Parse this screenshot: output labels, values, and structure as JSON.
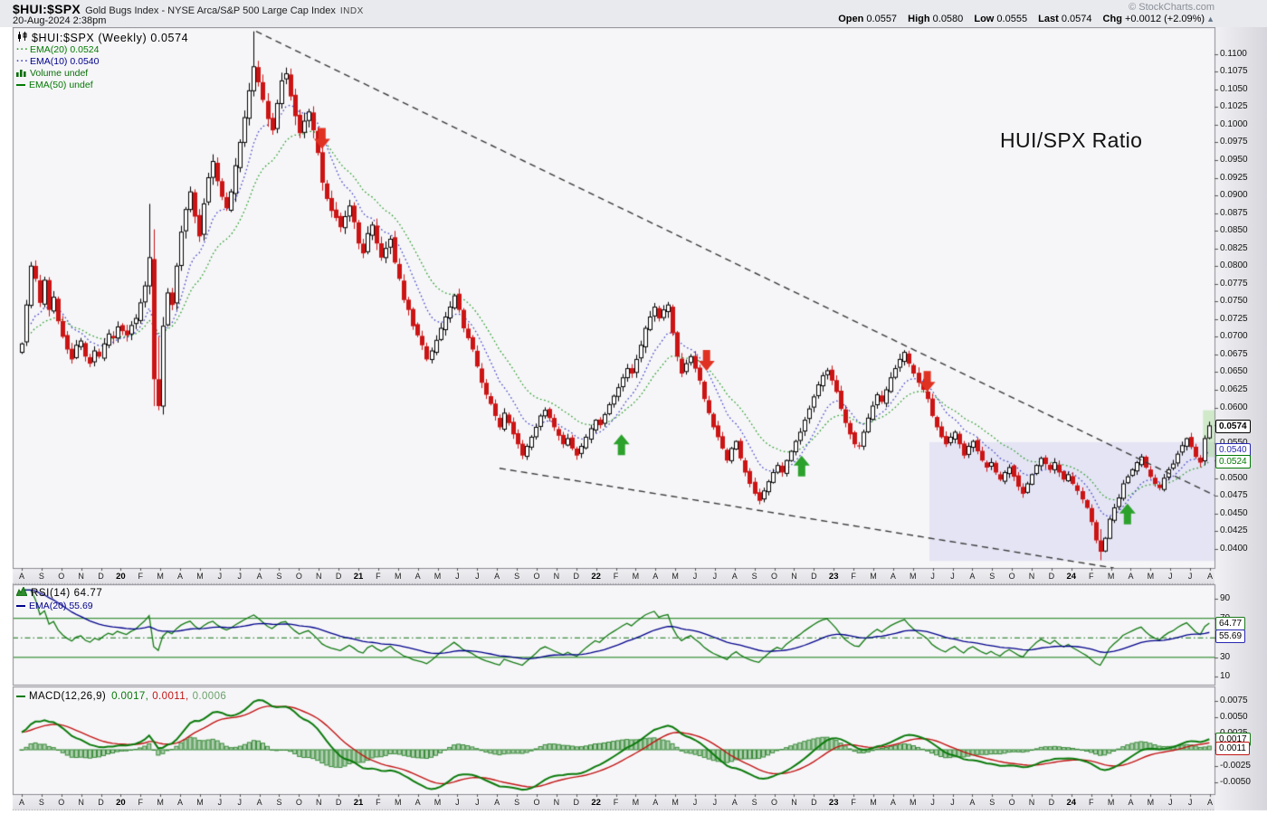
{
  "header": {
    "symbol": "$HUI:$SPX",
    "description": "Gold Bugs Index - NYSE Arca/S&P 500 Large Cap Index",
    "exchange": "INDX",
    "datetime": "20-Aug-2024 2:38pm",
    "copyright": "© StockCharts.com"
  },
  "quote": {
    "open_label": "Open",
    "open": "0.0557",
    "high_label": "High",
    "high": "0.0580",
    "low_label": "Low",
    "low": "0.0555",
    "last_label": "Last",
    "last": "0.0574",
    "chg_label": "Chg",
    "chg": "+0.0012 (+2.09%)",
    "arrow": "▲"
  },
  "main_legend": {
    "series": "$HUI:$SPX (Weekly) 0.0574",
    "ema20": "EMA(20) 0.0524",
    "ema10": "EMA(10) 0.0540",
    "volume": "Volume undef",
    "ema50": "EMA(50) undef"
  },
  "annotation": {
    "text": "HUI/SPX Ratio"
  },
  "price_labels": {
    "last": "0.0574",
    "ema10": "0.0540",
    "ema20": "0.0524"
  },
  "rsi_legend": {
    "line1": "RSI(14) 64.77",
    "line2": "EMA(20) 55.69"
  },
  "rsi_labels": {
    "rsi": "64.77",
    "ema": "55.69"
  },
  "macd_legend": {
    "name": "MACD(12,26,9)",
    "v1": "0.0017,",
    "v2": "0.0011,",
    "v3": "0.0006"
  },
  "macd_labels": {
    "macd": "0.0017",
    "signal": "0.0011"
  },
  "colors": {
    "up_candle": "#ffffff",
    "down_candle": "#cc1414",
    "candle_stroke": "#000000",
    "ema10": "#4545c8",
    "ema20": "#2e9e2e",
    "rsi_line": "#117a11",
    "rsi_ema": "#00008b",
    "rsi_bands": "#0f7a0f",
    "macd_line": "#0b7a0b",
    "macd_signal": "#c21414",
    "macd_hist_fill": "rgba(90,165,90,0.45)",
    "macd_hist_stroke": "#3a8a3a",
    "trendline": "#3a3a3a",
    "arrow_up": "#2ca12c",
    "arrow_down": "#e03222",
    "highlight_region": "rgba(110,110,215,0.13)",
    "last_candle_pad": "rgba(150,215,130,0.40)",
    "panel_bg": "#f6f6f8",
    "panel_border": "#8a8a92",
    "strip_bg": "#ececf0",
    "axis_bg": "#e2e2e8",
    "header_bg": "#e9eaee"
  },
  "y_axis_ticks": [
    "0.1100",
    "0.1075",
    "0.1050",
    "0.1025",
    "0.1000",
    "0.0975",
    "0.0950",
    "0.0925",
    "0.0900",
    "0.0875",
    "0.0850",
    "0.0825",
    "0.0800",
    "0.0775",
    "0.0750",
    "0.0725",
    "0.0700",
    "0.0675",
    "0.0650",
    "0.0625",
    "0.0600",
    "0.0575",
    "0.0550",
    "0.0525",
    "0.0500",
    "0.0475",
    "0.0450",
    "0.0425",
    "0.0400"
  ],
  "rsi_axis_ticks": [
    "90",
    "70",
    "50",
    "30",
    "10"
  ],
  "macd_axis_ticks": [
    "0.0075",
    "0.0050",
    "0.0025",
    "0.0000",
    "-0.0025",
    "-0.0050"
  ],
  "x_axis_labels": [
    "A",
    "S",
    "O",
    "N",
    "D",
    "20",
    "F",
    "M",
    "A",
    "M",
    "J",
    "J",
    "A",
    "S",
    "O",
    "N",
    "D",
    "21",
    "F",
    "M",
    "A",
    "M",
    "J",
    "J",
    "A",
    "S",
    "O",
    "N",
    "D",
    "22",
    "F",
    "M",
    "A",
    "M",
    "J",
    "J",
    "A",
    "S",
    "O",
    "N",
    "D",
    "23",
    "F",
    "M",
    "A",
    "M",
    "J",
    "J",
    "A",
    "S",
    "O",
    "N",
    "D",
    "24",
    "F",
    "M",
    "A",
    "M",
    "J",
    "J",
    "A"
  ],
  "chart_data": {
    "type": "candlestick",
    "symbol": "$HUI:$SPX",
    "timeframe": "weekly",
    "x_start": "Aug-2019",
    "x_end": "Aug-2024",
    "y_range": {
      "min": 0.0373,
      "max": 0.1138,
      "tick_min": 0.04,
      "tick_max": 0.11,
      "step": 0.0025
    },
    "last_quote": {
      "open": 0.0557,
      "high": 0.058,
      "low": 0.0555,
      "close": 0.0574,
      "change": 0.0012,
      "change_pct": 2.09
    },
    "overlays": [
      {
        "name": "EMA(10)",
        "period": 10,
        "last": 0.054
      },
      {
        "name": "EMA(20)",
        "period": 20,
        "last": 0.0524
      }
    ],
    "weekly_closes": [
      0.069,
      0.0745,
      0.08,
      0.0782,
      0.0748,
      0.078,
      0.0738,
      0.0756,
      0.0722,
      0.07,
      0.0682,
      0.0668,
      0.0688,
      0.0694,
      0.0672,
      0.0662,
      0.068,
      0.0672,
      0.069,
      0.0704,
      0.0698,
      0.0714,
      0.0708,
      0.0702,
      0.0716,
      0.0726,
      0.0748,
      0.0772,
      0.0812,
      0.064,
      0.0602,
      0.0715,
      0.0762,
      0.0745,
      0.08,
      0.0848,
      0.088,
      0.0905,
      0.087,
      0.0842,
      0.0888,
      0.0925,
      0.0948,
      0.092,
      0.0898,
      0.0882,
      0.0905,
      0.0942,
      0.0975,
      0.101,
      0.1048,
      0.1082,
      0.106,
      0.1035,
      0.1008,
      0.0992,
      0.103,
      0.1062,
      0.1072,
      0.104,
      0.1012,
      0.0988,
      0.1005,
      0.1018,
      0.0992,
      0.096,
      0.0918,
      0.0895,
      0.0878,
      0.0868,
      0.0855,
      0.087,
      0.0885,
      0.0862,
      0.0832,
      0.0818,
      0.0846,
      0.0858,
      0.0832,
      0.0812,
      0.0825,
      0.0838,
      0.0805,
      0.0782,
      0.0752,
      0.0738,
      0.0715,
      0.0702,
      0.0688,
      0.0668,
      0.068,
      0.0695,
      0.0712,
      0.0728,
      0.0742,
      0.0758,
      0.0738,
      0.0712,
      0.0698,
      0.0682,
      0.0658,
      0.0635,
      0.0618,
      0.0605,
      0.0588,
      0.0572,
      0.0592,
      0.0578,
      0.0562,
      0.0548,
      0.0532,
      0.0545,
      0.0558,
      0.0572,
      0.0588,
      0.0596,
      0.0585,
      0.0572,
      0.056,
      0.0548,
      0.0556,
      0.0542,
      0.0532,
      0.0545,
      0.0558,
      0.057,
      0.0582,
      0.0575,
      0.059,
      0.0604,
      0.0616,
      0.0628,
      0.0642,
      0.0655,
      0.0648,
      0.0668,
      0.0688,
      0.0712,
      0.0728,
      0.0742,
      0.0726,
      0.0738,
      0.0745,
      0.0705,
      0.0672,
      0.0648,
      0.0662,
      0.0672,
      0.0655,
      0.0638,
      0.0612,
      0.0592,
      0.0572,
      0.0558,
      0.0542,
      0.0525,
      0.0542,
      0.0552,
      0.0528,
      0.0508,
      0.0492,
      0.0478,
      0.0468,
      0.0482,
      0.0495,
      0.0508,
      0.0518,
      0.0508,
      0.0525,
      0.0538,
      0.0552,
      0.0565,
      0.0582,
      0.0598,
      0.0615,
      0.0632,
      0.0645,
      0.0652,
      0.0638,
      0.0622,
      0.0598,
      0.0578,
      0.0562,
      0.0548,
      0.0545,
      0.0565,
      0.0585,
      0.0602,
      0.0618,
      0.0608,
      0.0625,
      0.0642,
      0.0655,
      0.0668,
      0.0678,
      0.0662,
      0.0648,
      0.0635,
      0.0625,
      0.0612,
      0.0588,
      0.0572,
      0.0558,
      0.0548,
      0.0558,
      0.0565,
      0.0548,
      0.0532,
      0.0545,
      0.0552,
      0.0538,
      0.0525,
      0.0515,
      0.0522,
      0.0508,
      0.0498,
      0.0508,
      0.0515,
      0.0502,
      0.0488,
      0.0478,
      0.0492,
      0.0505,
      0.0518,
      0.0528,
      0.052,
      0.0512,
      0.0522,
      0.0508,
      0.0498,
      0.0505,
      0.0492,
      0.0482,
      0.047,
      0.0458,
      0.0438,
      0.0412,
      0.0396,
      0.0415,
      0.0442,
      0.0458,
      0.0472,
      0.0492,
      0.0502,
      0.0512,
      0.0522,
      0.053,
      0.0515,
      0.0502,
      0.0492,
      0.0486,
      0.05,
      0.0512,
      0.052,
      0.0534,
      0.0546,
      0.0556,
      0.0544,
      0.053,
      0.0522,
      0.0556,
      0.0574
    ],
    "ohlc_overrides": {
      "28": [
        0.0772,
        0.0888,
        0.076,
        0.0812
      ],
      "29": [
        0.081,
        0.0852,
        0.0602,
        0.064
      ],
      "30": [
        0.064,
        0.07,
        0.0596,
        0.0602
      ],
      "31": [
        0.0602,
        0.0728,
        0.059,
        0.0715
      ],
      "51": [
        0.1048,
        0.1132,
        0.104,
        0.1082
      ],
      "237": [
        0.0412,
        0.0428,
        0.0384,
        0.0396
      ],
      "261": [
        0.0557,
        0.058,
        0.0555,
        0.0574
      ]
    },
    "signal_arrows": [
      {
        "dir": "down",
        "week": 66,
        "price": 0.0966
      },
      {
        "dir": "down",
        "week": 150.5,
        "price": 0.0652
      },
      {
        "dir": "down",
        "week": 199,
        "price": 0.0622
      },
      {
        "dir": "up",
        "week": 131.8,
        "price": 0.0562
      },
      {
        "dir": "up",
        "week": 171.4,
        "price": 0.0532
      },
      {
        "dir": "up",
        "week": 243,
        "price": 0.0464
      }
    ],
    "trendlines": [
      {
        "from": [
          51.5,
          0.1132
        ],
        "to": [
          264.6,
          0.0468
        ]
      },
      {
        "from": [
          105,
          0.0514
        ],
        "to": [
          240.0,
          0.0373
        ]
      }
    ],
    "highlight_region": {
      "from_week": 199.5,
      "to_week": 263,
      "price_top": 0.0551,
      "price_bottom": 0.0383
    },
    "last_candle_highlight": {
      "from_week": 259.6,
      "to_week": 262.2,
      "price_top": 0.0596,
      "price_bottom": 0.053
    },
    "indicators": {
      "rsi": {
        "name": "RSI(14)",
        "last": 64.77,
        "ema_period": 20,
        "ema_last": 55.69,
        "ticks": [
          90,
          70,
          50,
          30,
          10
        ],
        "overbought": 70,
        "midline": 50,
        "oversold": 30,
        "scale": {
          "min": 2,
          "max": 105
        }
      },
      "macd": {
        "name": "MACD(12,26,9)",
        "macd_last": 0.0017,
        "signal_last": 0.0011,
        "hist_last": 0.0006,
        "ticks": [
          0.0075,
          0.005,
          0.0025,
          0.0,
          -0.0025,
          -0.005
        ],
        "scale": {
          "min": -0.0068,
          "max": 0.0097
        }
      }
    }
  }
}
